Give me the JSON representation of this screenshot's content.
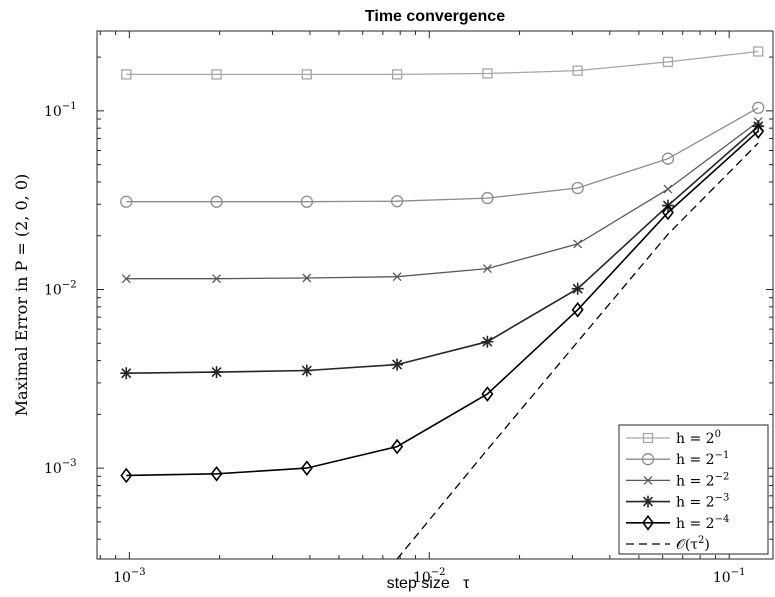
{
  "chart_data": {
    "type": "line",
    "title": "Time convergence",
    "xlabel": "step size   τ",
    "ylabel": "Maximal Error in P = (2, 0, 0)",
    "xscale": "log",
    "yscale": "log",
    "xlim": [
      0.00078,
      0.14
    ],
    "ylim": [
      0.00031,
      0.28
    ],
    "xticks": [
      {
        "value": 0.001,
        "base": "10",
        "exp": "−3"
      },
      {
        "value": 0.01,
        "base": "10",
        "exp": "−2"
      },
      {
        "value": 0.1,
        "base": "10",
        "exp": "−1"
      }
    ],
    "yticks": [
      {
        "value": 0.001,
        "base": "10",
        "exp": "−3"
      },
      {
        "value": 0.01,
        "base": "10",
        "exp": "−2"
      },
      {
        "value": 0.1,
        "base": "10",
        "exp": "−1"
      }
    ],
    "grid": false,
    "legend_position": "bottom-right",
    "x": [
      0.0009765625,
      0.001953125,
      0.00390625,
      0.0078125,
      0.015625,
      0.03125,
      0.0625,
      0.125
    ],
    "series": [
      {
        "name": "h = 2^0",
        "label_base": "h = 2",
        "label_exp": "0",
        "marker": "square",
        "color": "#a6a6a6",
        "values": [
          0.16,
          0.16,
          0.16,
          0.16,
          0.162,
          0.168,
          0.188,
          0.215
        ]
      },
      {
        "name": "h = 2^-1",
        "label_base": "h = 2",
        "label_exp": "−1",
        "marker": "circle",
        "color": "#8c8c8c",
        "values": [
          0.031,
          0.031,
          0.031,
          0.0312,
          0.0325,
          0.037,
          0.054,
          0.104
        ]
      },
      {
        "name": "h = 2^-2",
        "label_base": "h = 2",
        "label_exp": "−2",
        "marker": "x",
        "color": "#595959",
        "values": [
          0.0115,
          0.0115,
          0.0116,
          0.0118,
          0.0131,
          0.018,
          0.0365,
          0.087
        ]
      },
      {
        "name": "h = 2^-3",
        "label_base": "h = 2",
        "label_exp": "−3",
        "marker": "star",
        "color": "#262626",
        "values": [
          0.0034,
          0.00345,
          0.00352,
          0.0038,
          0.0051,
          0.0101,
          0.0295,
          0.082
        ]
      },
      {
        "name": "h = 2^-4",
        "label_base": "h = 2",
        "label_exp": "−4",
        "marker": "diamond",
        "color": "#000000",
        "values": [
          0.00091,
          0.00093,
          0.001,
          0.00132,
          0.0026,
          0.0077,
          0.027,
          0.077
        ]
      },
      {
        "name": "O(τ^2)",
        "label_base": "𝒪(τ",
        "label_exp": "2",
        "label_tail": ")",
        "marker": "none",
        "color": "#000000",
        "dashed": true,
        "values": [
          null,
          null,
          null,
          0.00031,
          0.00127,
          0.0051,
          0.0204,
          0.066
        ]
      }
    ]
  }
}
